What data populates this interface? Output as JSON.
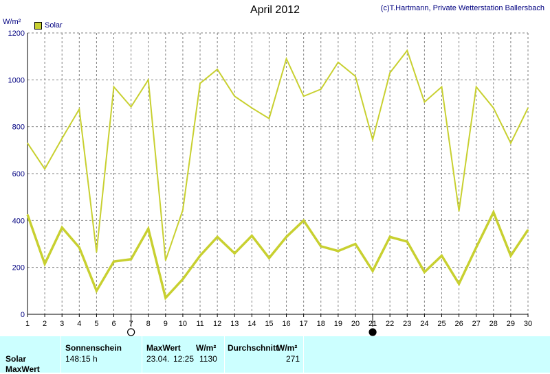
{
  "header": {
    "title": "April 2012",
    "copyright": "(c)T.Hartmann, Private Wetterstation Ballersbach",
    "unit": "W/m²",
    "legend_label": "Solar"
  },
  "colors": {
    "series": "#c8d030",
    "grid": "#808080",
    "axis": "#000000",
    "footer_bg": "#ccffff"
  },
  "chart_data": {
    "type": "line",
    "title": "April 2012",
    "ylabel": "W/m²",
    "ylim": [
      0,
      1200
    ],
    "yticks": [
      0,
      200,
      400,
      600,
      800,
      1000,
      1200
    ],
    "x": [
      1,
      2,
      3,
      4,
      5,
      6,
      7,
      8,
      9,
      10,
      11,
      12,
      13,
      14,
      15,
      16,
      17,
      18,
      19,
      20,
      21,
      22,
      23,
      24,
      25,
      26,
      27,
      28,
      29,
      30
    ],
    "grid": true,
    "series": [
      {
        "name": "Solar",
        "role": "daily maximum",
        "values": [
          730,
          620,
          750,
          875,
          265,
          970,
          885,
          1000,
          230,
          445,
          985,
          1045,
          930,
          880,
          835,
          1090,
          930,
          960,
          1075,
          1015,
          745,
          1030,
          1125,
          905,
          970,
          440,
          970,
          880,
          730,
          880
        ]
      },
      {
        "name": "Solar",
        "role": "daily mean",
        "values": [
          425,
          215,
          370,
          285,
          100,
          225,
          235,
          365,
          70,
          150,
          250,
          330,
          260,
          335,
          240,
          330,
          400,
          290,
          270,
          300,
          185,
          330,
          310,
          180,
          250,
          130,
          285,
          435,
          250,
          360
        ]
      }
    ],
    "moon_markers": [
      {
        "day": 7,
        "phase": "full-moon"
      },
      {
        "day": 21,
        "phase": "new-moon"
      }
    ]
  },
  "footer": {
    "row_label_1": "Solar",
    "row_label_2": "MaxWert",
    "sunshine_header": "Sonnenschein",
    "sunshine_value": "148:15 h",
    "max_header": "MaxWert",
    "max_unit": "W/m²",
    "max_date": "23.04.",
    "max_time": "12:25",
    "max_value": "1130",
    "avg_header": "Durchschnitt",
    "avg_unit": "W/m²",
    "avg_value": "271"
  }
}
